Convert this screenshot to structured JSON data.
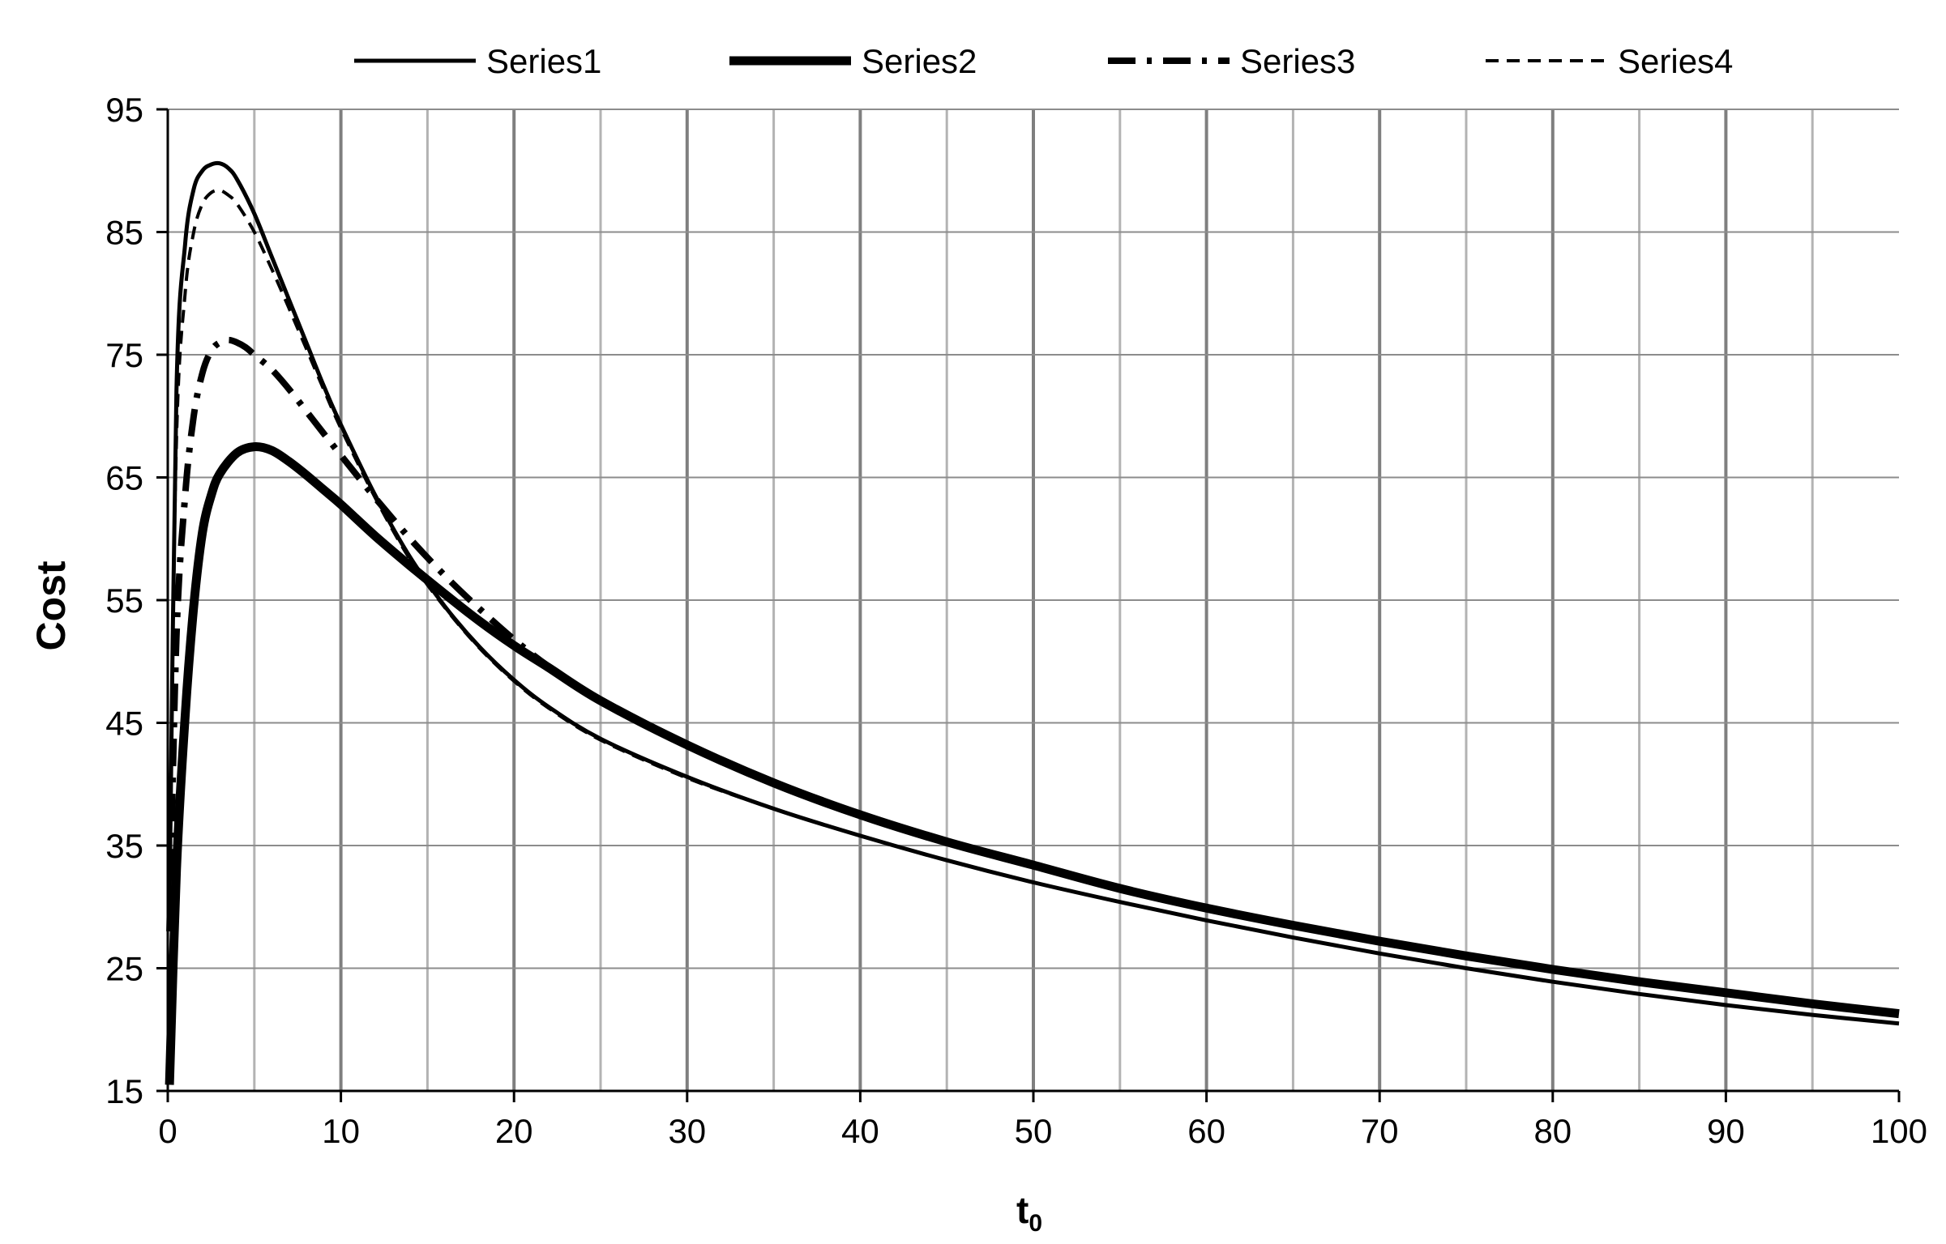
{
  "chart_data": {
    "type": "line",
    "xlabel_main": "t",
    "xlabel_sub": "0",
    "ylabel": "Cost",
    "xlim": [
      0,
      100
    ],
    "ylim": [
      15,
      95
    ],
    "x_ticks": [
      0,
      10,
      20,
      30,
      40,
      50,
      60,
      70,
      80,
      90,
      100
    ],
    "y_ticks": [
      15,
      25,
      35,
      45,
      55,
      65,
      75,
      85,
      95
    ],
    "grid": "vertical every 5 (major every 10), horizontal every 10",
    "legend_position": "top",
    "series": [
      {
        "name": "Series1",
        "style": "solid-thin",
        "x": [
          0.1,
          0.5,
          1,
          1.5,
          2,
          2.5,
          3,
          3.5,
          4,
          5,
          6,
          7,
          8,
          9,
          10,
          12,
          14,
          16,
          18,
          20,
          22,
          25,
          30,
          35,
          40,
          45,
          50,
          55,
          60,
          65,
          70,
          75,
          80,
          85,
          90,
          95,
          100
        ],
        "y": [
          30,
          72,
          84,
          88.5,
          90,
          90.5,
          90.6,
          90.2,
          89.3,
          86.5,
          83,
          79.5,
          76,
          72.5,
          69.3,
          63.5,
          58.5,
          54.5,
          51.2,
          48.5,
          46.3,
          43.7,
          40.6,
          38,
          35.8,
          33.8,
          32,
          30.4,
          28.9,
          27.5,
          26.2,
          25,
          23.9,
          22.9,
          22,
          21.2,
          20.5
        ]
      },
      {
        "name": "Series2",
        "style": "solid-thick",
        "x": [
          0.1,
          0.5,
          1,
          1.5,
          2,
          2.5,
          3,
          4,
          5,
          6,
          7,
          8,
          9,
          10,
          12,
          14,
          16,
          18,
          20,
          22,
          25,
          30,
          35,
          40,
          45,
          50,
          55,
          60,
          65,
          70,
          75,
          80,
          85,
          90,
          95,
          100
        ],
        "y": [
          15.5,
          33,
          45.5,
          54.5,
          60.5,
          63.5,
          65.3,
          67,
          67.5,
          67.2,
          66.3,
          65.2,
          64,
          62.8,
          60.2,
          57.8,
          55.5,
          53.3,
          51.3,
          49.5,
          46.8,
          43.2,
          40.1,
          37.5,
          35.3,
          33.4,
          31.5,
          29.9,
          28.5,
          27.2,
          26,
          24.9,
          23.9,
          23,
          22.1,
          21.3
        ]
      },
      {
        "name": "Series3",
        "style": "dash-dot",
        "x": [
          0.1,
          0.5,
          1,
          1.5,
          2,
          2.5,
          3,
          3.5,
          4,
          4.5,
          5,
          6,
          7,
          8,
          9,
          10,
          12,
          14,
          16,
          18,
          20,
          22,
          25,
          30,
          35,
          40,
          45,
          50,
          55,
          60,
          65,
          70,
          75,
          80,
          85,
          90,
          95,
          100
        ],
        "y": [
          28,
          52,
          63.5,
          70,
          73.5,
          75.3,
          76,
          76.2,
          76,
          75.6,
          75,
          73.8,
          72.2,
          70.4,
          68.6,
          66.8,
          63.3,
          60,
          57,
          54.3,
          51.8,
          49.6,
          46.8,
          43.2,
          40.1,
          37.5,
          35.3,
          33.4,
          31.5,
          29.9,
          28.5,
          27.2,
          26,
          24.9,
          23.9,
          23,
          22.1,
          21.3
        ]
      },
      {
        "name": "Series4",
        "style": "dashed",
        "x": [
          0.1,
          0.5,
          1,
          1.5,
          2,
          2.5,
          3,
          3.5,
          4,
          5,
          6,
          7,
          8,
          9,
          10,
          12,
          14,
          16,
          18,
          20,
          22,
          25,
          30,
          35,
          40,
          45,
          50,
          55,
          60,
          65,
          70,
          75,
          80,
          85,
          90,
          95,
          100
        ],
        "y": [
          33,
          68,
          80,
          85,
          87.3,
          88.2,
          88.4,
          88,
          87.3,
          85,
          82,
          78.8,
          75.5,
          72.2,
          69,
          63.3,
          58.3,
          54.4,
          51.1,
          48.4,
          46.2,
          43.6,
          40.5,
          38,
          35.8,
          33.8,
          32,
          30.4,
          28.9,
          27.5,
          26.2,
          25,
          23.9,
          22.9,
          22,
          21.2,
          20.5
        ]
      }
    ]
  }
}
